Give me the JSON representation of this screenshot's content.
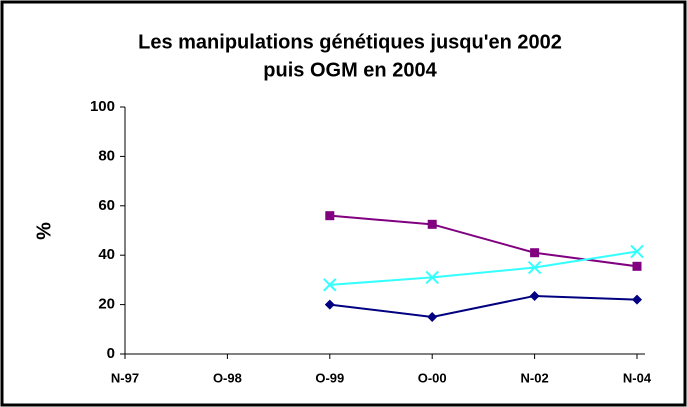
{
  "chart_data": {
    "type": "line",
    "title": [
      "Les manipulations génétiques jusqu'en 2002",
      "puis OGM en 2004"
    ],
    "y_label": "%",
    "categories": [
      "N-97",
      "O-98",
      "O-99",
      "O-00",
      "N-02",
      "N-04"
    ],
    "series": [
      {
        "color": "#000080",
        "marker": "diamond",
        "values": [
          null,
          null,
          20,
          15,
          23.5,
          22
        ]
      },
      {
        "color": "#800080",
        "marker": "square",
        "values": [
          null,
          null,
          56,
          52.5,
          41,
          35.5
        ]
      },
      {
        "color": "#33ffff",
        "marker": "x",
        "values": [
          null,
          null,
          28,
          31,
          35,
          41.5
        ]
      }
    ],
    "ylim": [
      0,
      100
    ],
    "yticks": [
      0,
      20,
      40,
      60,
      80,
      100
    ],
    "grid": false
  }
}
